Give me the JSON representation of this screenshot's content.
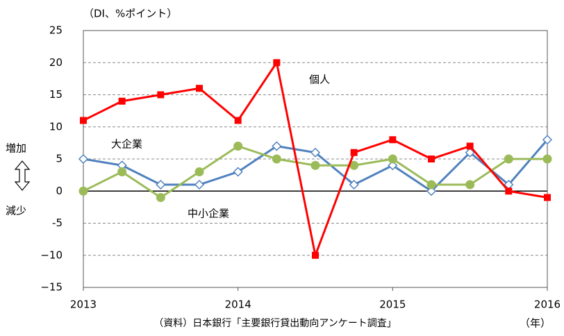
{
  "chart_data": {
    "type": "line",
    "unit_label": "（DI、%ポイント）",
    "x_unit_label": "（年）",
    "source": "（資料）日本銀行「主要銀行貸出動向アンケート調査」",
    "increase_label": "増加",
    "decrease_label": "減少",
    "x": [
      2013,
      2013.25,
      2013.5,
      2013.75,
      2014,
      2014.25,
      2014.5,
      2014.75,
      2015,
      2015.25,
      2015.5,
      2015.75,
      2016
    ],
    "series": [
      {
        "name": "大企業",
        "color": "#4f81bd",
        "marker": "diamond",
        "values": [
          5,
          4,
          1,
          1,
          3,
          7,
          6,
          1,
          4,
          0,
          6,
          1,
          8
        ]
      },
      {
        "name": "中小企業",
        "color": "#9bbb59",
        "marker": "circle",
        "values": [
          0,
          3,
          -1,
          3,
          7,
          5,
          4,
          4,
          5,
          1,
          1,
          5,
          5
        ]
      },
      {
        "name": "個人",
        "color": "#ff0000",
        "marker": "square",
        "values": [
          11,
          14,
          15,
          16,
          11,
          20,
          -10,
          6,
          8,
          5,
          7,
          0,
          -1
        ]
      }
    ],
    "xlim": [
      2013,
      2016
    ],
    "xticks": [
      2013,
      2014,
      2015,
      2016
    ],
    "ylim": [
      -15,
      25
    ],
    "yticks": [
      {
        "value": -15,
        "label": "−15"
      },
      {
        "value": -10,
        "label": "−10"
      },
      {
        "value": -5,
        "label": "-5"
      },
      0,
      5,
      10,
      15,
      20,
      25
    ],
    "grid": true
  }
}
